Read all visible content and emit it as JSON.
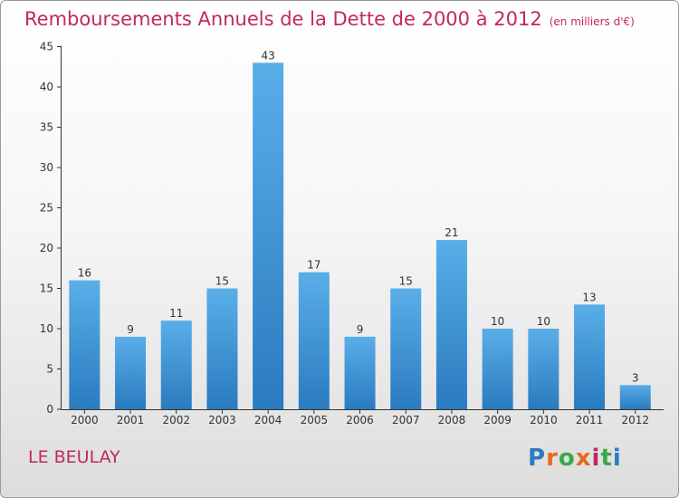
{
  "header": {
    "title": "Remboursements Annuels de la Dette de 2000 à 2012",
    "subtitle": "(en milliers d'€)"
  },
  "footer": {
    "commune": "LE BEULAY",
    "logo_text": "Proxiti"
  },
  "colors": {
    "bar_top": "#5aaee8",
    "bar_bottom": "#2a7bbf",
    "title": "#c2285f",
    "axis": "#333333"
  },
  "chart_data": {
    "type": "bar",
    "title": "Remboursements Annuels de la Dette de 2000 à 2012",
    "subtitle": "(en milliers d'€)",
    "xlabel": "",
    "ylabel": "",
    "categories": [
      "2000",
      "2001",
      "2002",
      "2003",
      "2004",
      "2005",
      "2006",
      "2007",
      "2008",
      "2009",
      "2010",
      "2011",
      "2012"
    ],
    "values": [
      16,
      9,
      11,
      15,
      43,
      17,
      9,
      15,
      21,
      10,
      10,
      13,
      3
    ],
    "ylim": [
      0,
      45
    ],
    "yticks": [
      0,
      5,
      10,
      15,
      20,
      25,
      30,
      35,
      40,
      45
    ],
    "grid": false,
    "legend": "none",
    "data_labels": true
  }
}
